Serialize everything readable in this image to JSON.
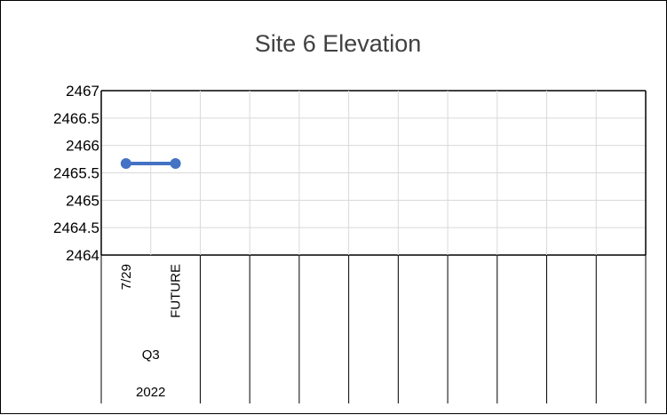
{
  "chart_data": {
    "type": "line",
    "title": "Site 6 Elevation",
    "xlabel": "",
    "ylabel": "",
    "ylim": [
      2464,
      2467
    ],
    "y_ticks": [
      "2467",
      "2466.5",
      "2466",
      "2465.5",
      "2465",
      "2464.5",
      "2464"
    ],
    "grid": true,
    "legend": "none",
    "categories": [
      "7/29",
      "FUTURE"
    ],
    "category_group": "Q3",
    "year_group": "2022",
    "empty_slots_after": 9,
    "series": [
      {
        "values": [
          2465.67,
          2465.67
        ],
        "color": "#4472C4"
      }
    ]
  }
}
